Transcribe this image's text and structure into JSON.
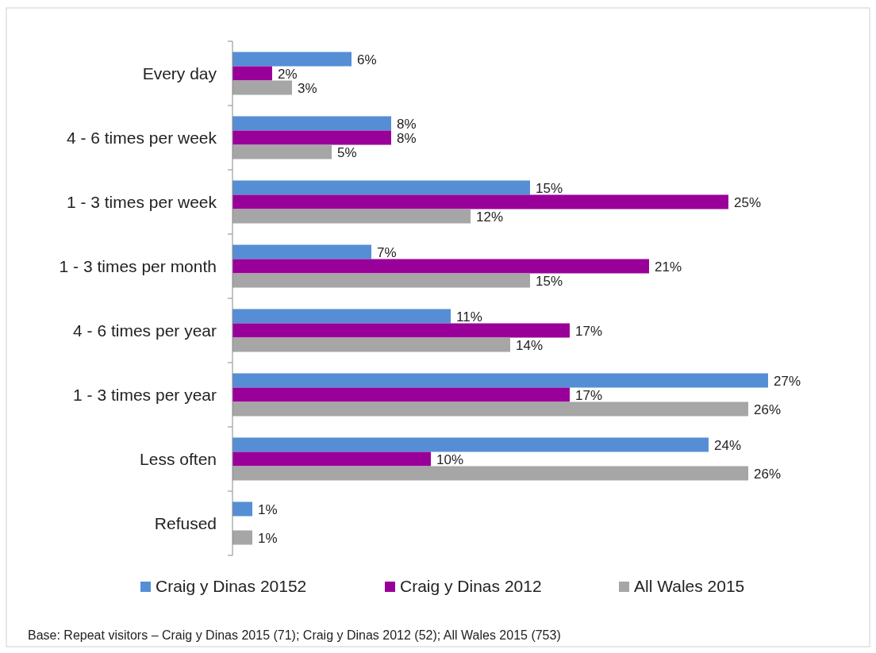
{
  "chart_data": {
    "type": "bar",
    "orientation": "horizontal",
    "categories": [
      "Every day",
      "4 - 6 times per week",
      "1 - 3 times per week",
      "1 - 3 times per month",
      "4 - 6 times per year",
      "1 - 3 times per year",
      "Less often",
      "Refused"
    ],
    "xlim": [
      0,
      32
    ],
    "tick_labels": "y",
    "legend": "bottom",
    "series": [
      {
        "name": "Craig y Dinas 20152",
        "color": "#558ed5",
        "values": [
          6,
          8,
          15,
          7,
          11,
          27,
          24,
          1
        ],
        "value_labels": [
          "6%",
          "8%",
          "15%",
          "7%",
          "11%",
          "27%",
          "24%",
          "1%"
        ]
      },
      {
        "name": "Craig y Dinas 2012",
        "color": "#990099",
        "values": [
          2,
          8,
          25,
          21,
          17,
          17,
          10,
          null
        ],
        "value_labels": [
          "2%",
          "8%",
          "25%",
          "21%",
          "17%",
          "17%",
          "10%",
          null
        ]
      },
      {
        "name": "All Wales 2015",
        "color": "#a6a6a6",
        "values": [
          3,
          5,
          12,
          15,
          14,
          26,
          26,
          1
        ],
        "value_labels": [
          "3%",
          "5%",
          "12%",
          "15%",
          "14%",
          "26%",
          "26%",
          "1%"
        ]
      }
    ],
    "annotations": [
      "Base: Repeat visitors – Craig y Dinas 2015 (71); Craig y Dinas 2012 (52); All Wales 2015 (753)"
    ]
  }
}
